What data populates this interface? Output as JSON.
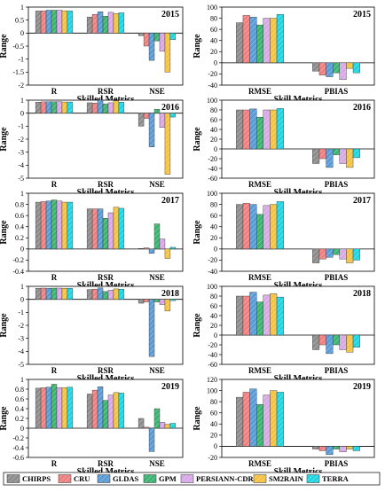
{
  "colors": {
    "CHIRPS": "#8c8c8c",
    "CRU": "#f08080",
    "GLDAS": "#5b9bd5",
    "GPM": "#3cb371",
    "PERSIANN-CDR": "#d9a8e8",
    "SM2RAIN": "#f5c242",
    "TERRA": "#20d5e0"
  },
  "legend": {
    "items": [
      "CHIRPS",
      "CRU",
      "GLDAS",
      "GPM",
      "PERSIANN-CDR",
      "SM2RAIN",
      "TERRA"
    ]
  },
  "chart_data": [
    {
      "type": "bar",
      "year": "2015",
      "ylabel": "Range",
      "xlabel": "Skilled Metrics",
      "categories": [
        "R",
        "RSR",
        "NSE"
      ],
      "ylim": [
        -2,
        1
      ],
      "yticks": [
        1,
        0.5,
        0,
        -0.5,
        -1,
        -1.5,
        -2
      ],
      "series": [
        {
          "name": "CHIRPS",
          "values": [
            0.85,
            0.62,
            -0.1
          ]
        },
        {
          "name": "CRU",
          "values": [
            0.85,
            0.72,
            -0.5
          ]
        },
        {
          "name": "GLDAS",
          "values": [
            0.88,
            0.82,
            -1.05
          ]
        },
        {
          "name": "GPM",
          "values": [
            0.88,
            0.65,
            -0.3
          ]
        },
        {
          "name": "PERSIANN-CDR",
          "values": [
            0.88,
            0.8,
            -0.7
          ]
        },
        {
          "name": "SM2RAIN",
          "values": [
            0.86,
            0.75,
            -1.5
          ]
        },
        {
          "name": "TERRA",
          "values": [
            0.85,
            0.78,
            -0.25
          ]
        }
      ]
    },
    {
      "type": "bar",
      "year": "2015",
      "ylabel": "Range",
      "xlabel": "Skill Metrics",
      "categories": [
        "RMSE",
        "PBIAS"
      ],
      "ylim": [
        -40,
        100
      ],
      "yticks": [
        100,
        80,
        60,
        40,
        20,
        0,
        -20,
        -40
      ],
      "series": [
        {
          "name": "CHIRPS",
          "values": [
            72,
            -15
          ]
        },
        {
          "name": "CRU",
          "values": [
            85,
            -22
          ]
        },
        {
          "name": "GLDAS",
          "values": [
            82,
            -25
          ]
        },
        {
          "name": "GPM",
          "values": [
            68,
            -18
          ]
        },
        {
          "name": "PERSIANN-CDR",
          "values": [
            80,
            -30
          ]
        },
        {
          "name": "SM2RAIN",
          "values": [
            80,
            -10
          ]
        },
        {
          "name": "TERRA",
          "values": [
            87,
            -18
          ]
        }
      ]
    },
    {
      "type": "bar",
      "year": "2016",
      "ylabel": "Range",
      "xlabel": "Skilled Metrics",
      "categories": [
        "R",
        "RSR",
        "NSE"
      ],
      "ylim": [
        -5,
        1
      ],
      "yticks": [
        1,
        0,
        -1,
        -2,
        -3,
        -4,
        -5
      ],
      "series": [
        {
          "name": "CHIRPS",
          "values": [
            0.85,
            0.8,
            -1.0
          ]
        },
        {
          "name": "CRU",
          "values": [
            0.87,
            0.78,
            -0.4
          ]
        },
        {
          "name": "GLDAS",
          "values": [
            0.88,
            1.0,
            -2.6
          ]
        },
        {
          "name": "GPM",
          "values": [
            0.88,
            0.72,
            0.3
          ]
        },
        {
          "name": "PERSIANN-CDR",
          "values": [
            0.88,
            0.8,
            -1.1
          ]
        },
        {
          "name": "SM2RAIN",
          "values": [
            0.86,
            0.95,
            -4.7
          ]
        },
        {
          "name": "TERRA",
          "values": [
            0.86,
            0.85,
            -0.3
          ]
        }
      ]
    },
    {
      "type": "bar",
      "year": "2016",
      "ylabel": "Range",
      "xlabel": "Skill Metrics",
      "categories": [
        "RMSE",
        "PBIAS"
      ],
      "ylim": [
        -60,
        100
      ],
      "yticks": [
        100,
        80,
        60,
        40,
        20,
        0,
        -20,
        -40,
        -60
      ],
      "series": [
        {
          "name": "CHIRPS",
          "values": [
            80,
            -30
          ]
        },
        {
          "name": "CRU",
          "values": [
            80,
            -20
          ]
        },
        {
          "name": "GLDAS",
          "values": [
            82,
            -38
          ]
        },
        {
          "name": "GPM",
          "values": [
            65,
            -12
          ]
        },
        {
          "name": "PERSIANN-CDR",
          "values": [
            80,
            -30
          ]
        },
        {
          "name": "SM2RAIN",
          "values": [
            80,
            -38
          ]
        },
        {
          "name": "TERRA",
          "values": [
            83,
            -18
          ]
        }
      ]
    },
    {
      "type": "bar",
      "year": "2017",
      "ylabel": "Range",
      "xlabel": "Skilled Metrics",
      "categories": [
        "R",
        "RSR",
        "NSE"
      ],
      "ylim": [
        -0.4,
        1
      ],
      "yticks": [
        1,
        0.8,
        0.6,
        0.4,
        0.2,
        0,
        -0.2,
        -0.4
      ],
      "series": [
        {
          "name": "CHIRPS",
          "values": [
            0.84,
            0.72,
            0.01
          ]
        },
        {
          "name": "CRU",
          "values": [
            0.85,
            0.72,
            0.02
          ]
        },
        {
          "name": "GLDAS",
          "values": [
            0.86,
            0.72,
            -0.08
          ]
        },
        {
          "name": "GPM",
          "values": [
            0.88,
            0.55,
            0.45
          ]
        },
        {
          "name": "PERSIANN-CDR",
          "values": [
            0.86,
            0.65,
            0.18
          ]
        },
        {
          "name": "SM2RAIN",
          "values": [
            0.84,
            0.75,
            -0.17
          ]
        },
        {
          "name": "TERRA",
          "values": [
            0.84,
            0.73,
            0.03
          ]
        }
      ]
    },
    {
      "type": "bar",
      "year": "2017",
      "ylabel": "Range",
      "xlabel": "Skill Metrics",
      "categories": [
        "RMSE",
        "PBIAS"
      ],
      "ylim": [
        -40,
        100
      ],
      "yticks": [
        100,
        80,
        60,
        40,
        20,
        0,
        -20,
        -40
      ],
      "series": [
        {
          "name": "CHIRPS",
          "values": [
            80,
            -25
          ]
        },
        {
          "name": "CRU",
          "values": [
            82,
            -18
          ]
        },
        {
          "name": "GLDAS",
          "values": [
            80,
            -15
          ]
        },
        {
          "name": "GPM",
          "values": [
            62,
            -10
          ]
        },
        {
          "name": "PERSIANN-CDR",
          "values": [
            78,
            -18
          ]
        },
        {
          "name": "SM2RAIN",
          "values": [
            80,
            -25
          ]
        },
        {
          "name": "TERRA",
          "values": [
            85,
            -20
          ]
        }
      ]
    },
    {
      "type": "bar",
      "year": "2018",
      "ylabel": "Range",
      "xlabel": "Skilled Metrics",
      "categories": [
        "R",
        "RSR",
        "NSE"
      ],
      "ylim": [
        -5,
        1
      ],
      "yticks": [
        1,
        0,
        -1,
        -2,
        -3,
        -4,
        -5
      ],
      "series": [
        {
          "name": "CHIRPS",
          "values": [
            0.85,
            0.75,
            -0.3
          ]
        },
        {
          "name": "CRU",
          "values": [
            0.86,
            0.78,
            -0.2
          ]
        },
        {
          "name": "GLDAS",
          "values": [
            0.85,
            0.88,
            -4.4
          ]
        },
        {
          "name": "GPM",
          "values": [
            0.86,
            0.6,
            -0.2
          ]
        },
        {
          "name": "PERSIANN-CDR",
          "values": [
            0.86,
            0.7,
            -0.4
          ]
        },
        {
          "name": "SM2RAIN",
          "values": [
            0.85,
            0.8,
            -0.9
          ]
        },
        {
          "name": "TERRA",
          "values": [
            0.85,
            0.78,
            -0.1
          ]
        }
      ]
    },
    {
      "type": "bar",
      "year": "2018",
      "ylabel": "Range",
      "xlabel": "Skill Metrics",
      "categories": [
        "RMSE",
        "PBIAS"
      ],
      "ylim": [
        -60,
        100
      ],
      "yticks": [
        100,
        80,
        60,
        40,
        20,
        0,
        -20,
        -40,
        -60
      ],
      "series": [
        {
          "name": "CHIRPS",
          "values": [
            80,
            -30
          ]
        },
        {
          "name": "CRU",
          "values": [
            80,
            -20
          ]
        },
        {
          "name": "GLDAS",
          "values": [
            88,
            -38
          ]
        },
        {
          "name": "GPM",
          "values": [
            68,
            -20
          ]
        },
        {
          "name": "PERSIANN-CDR",
          "values": [
            82,
            -30
          ]
        },
        {
          "name": "SM2RAIN",
          "values": [
            85,
            -35
          ]
        },
        {
          "name": "TERRA",
          "values": [
            78,
            -25
          ]
        }
      ]
    },
    {
      "type": "bar",
      "year": "2019",
      "ylabel": "Range",
      "xlabel": "Skilled Metrics",
      "categories": [
        "R",
        "RSR",
        "NSE"
      ],
      "ylim": [
        -0.6,
        1
      ],
      "yticks": [
        1,
        0.8,
        0.6,
        0.4,
        0.2,
        0,
        -0.2,
        -0.4,
        -0.6
      ],
      "series": [
        {
          "name": "CHIRPS",
          "values": [
            0.82,
            0.7,
            0.2
          ]
        },
        {
          "name": "CRU",
          "values": [
            0.83,
            0.78,
            0.02
          ]
        },
        {
          "name": "GLDAS",
          "values": [
            0.84,
            0.85,
            -0.48
          ]
        },
        {
          "name": "GPM",
          "values": [
            0.9,
            0.57,
            0.4
          ]
        },
        {
          "name": "PERSIANN-CDR",
          "values": [
            0.83,
            0.68,
            0.12
          ]
        },
        {
          "name": "SM2RAIN",
          "values": [
            0.83,
            0.73,
            0.08
          ]
        },
        {
          "name": "TERRA",
          "values": [
            0.84,
            0.72,
            0.1
          ]
        }
      ]
    },
    {
      "type": "bar",
      "year": "2019",
      "ylabel": "Range",
      "xlabel": "Skill Metrics",
      "categories": [
        "RMSE",
        "PBIAS"
      ],
      "ylim": [
        -20,
        120
      ],
      "yticks": [
        120,
        100,
        80,
        60,
        40,
        20,
        0,
        -20
      ],
      "series": [
        {
          "name": "CHIRPS",
          "values": [
            88,
            -5
          ]
        },
        {
          "name": "CRU",
          "values": [
            97,
            -8
          ]
        },
        {
          "name": "GLDAS",
          "values": [
            103,
            -15
          ]
        },
        {
          "name": "GPM",
          "values": [
            75,
            -5
          ]
        },
        {
          "name": "PERSIANN-CDR",
          "values": [
            92,
            -10
          ]
        },
        {
          "name": "SM2RAIN",
          "values": [
            100,
            -5
          ]
        },
        {
          "name": "TERRA",
          "values": [
            97,
            -8
          ]
        }
      ]
    }
  ]
}
